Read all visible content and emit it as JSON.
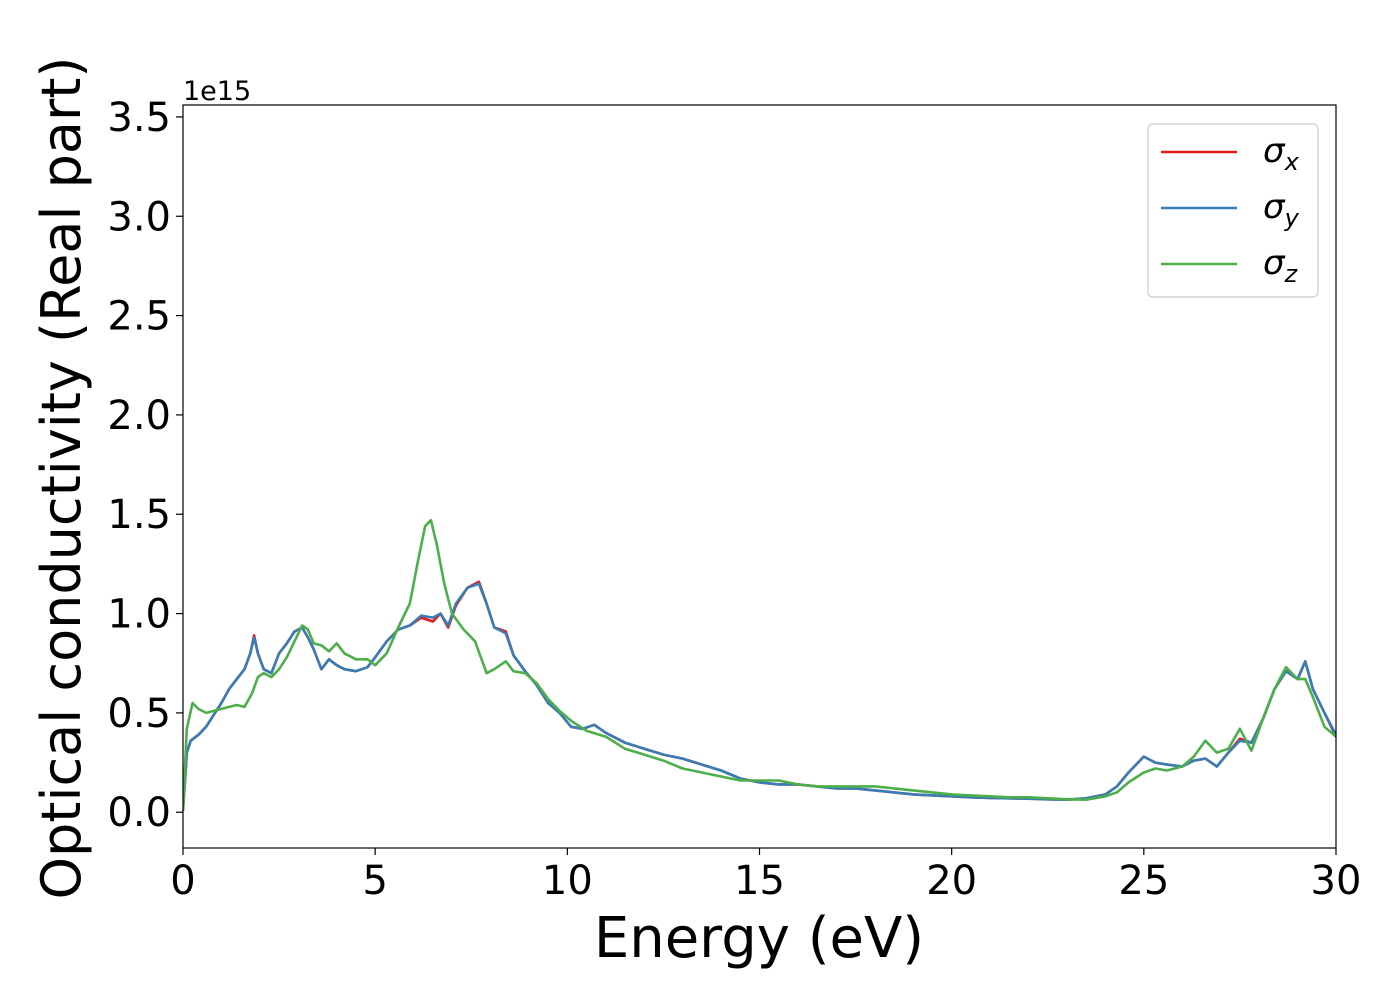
{
  "chart_data": {
    "type": "line",
    "xlabel": "Energy (eV)",
    "ylabel": "Optical conductivity (Real part)",
    "y_offset_label": "1e15",
    "y_scale": 1000000000000000.0,
    "xlim": [
      0,
      30
    ],
    "ylim": [
      -0.18,
      3.56
    ],
    "xticks": [
      0,
      5,
      10,
      15,
      20,
      25,
      30
    ],
    "xtick_labels": [
      "0",
      "5",
      "10",
      "15",
      "20",
      "25",
      "30"
    ],
    "yticks": [
      0.0,
      0.5,
      1.0,
      1.5,
      2.0,
      2.5,
      3.0,
      3.5
    ],
    "ytick_labels": [
      "0.0",
      "0.5",
      "1.0",
      "1.5",
      "2.0",
      "2.5",
      "3.0",
      "3.5"
    ],
    "grid": false,
    "legend_position": "top-right",
    "series": [
      {
        "name": "σx",
        "name_base": "σ",
        "name_sub": "x",
        "color": "#e41a1c",
        "x": [
          0,
          0.1,
          0.2,
          0.4,
          0.6,
          0.8,
          1.0,
          1.2,
          1.4,
          1.6,
          1.75,
          1.85,
          1.95,
          2.1,
          2.3,
          2.5,
          2.7,
          2.9,
          3.1,
          3.25,
          3.4,
          3.6,
          3.8,
          4.0,
          4.2,
          4.5,
          4.8,
          5.0,
          5.3,
          5.6,
          5.9,
          6.2,
          6.5,
          6.7,
          6.9,
          7.1,
          7.4,
          7.7,
          7.9,
          8.1,
          8.4,
          8.6,
          8.9,
          9.2,
          9.5,
          9.8,
          10.1,
          10.4,
          10.7,
          11.0,
          11.5,
          12.0,
          12.5,
          13.0,
          13.5,
          14.0,
          14.5,
          15.0,
          15.5,
          16.0,
          16.5,
          17.0,
          17.5,
          18.0,
          18.5,
          19.0,
          19.5,
          20.0,
          20.5,
          21.0,
          21.5,
          22.0,
          22.5,
          23.0,
          23.5,
          24.0,
          24.3,
          24.6,
          25.0,
          25.3,
          25.6,
          26.0,
          26.3,
          26.6,
          26.9,
          27.2,
          27.5,
          27.8,
          28.1,
          28.4,
          28.7,
          29.0,
          29.2,
          29.4,
          29.7,
          30.0
        ],
        "values": [
          0.01,
          0.3,
          0.36,
          0.39,
          0.43,
          0.49,
          0.55,
          0.62,
          0.67,
          0.72,
          0.8,
          0.89,
          0.8,
          0.72,
          0.7,
          0.8,
          0.85,
          0.91,
          0.93,
          0.88,
          0.82,
          0.72,
          0.77,
          0.74,
          0.72,
          0.71,
          0.73,
          0.78,
          0.86,
          0.92,
          0.94,
          0.98,
          0.96,
          1.0,
          0.93,
          1.04,
          1.13,
          1.16,
          1.05,
          0.93,
          0.91,
          0.79,
          0.71,
          0.64,
          0.55,
          0.5,
          0.43,
          0.42,
          0.44,
          0.4,
          0.35,
          0.32,
          0.29,
          0.27,
          0.24,
          0.21,
          0.17,
          0.15,
          0.14,
          0.14,
          0.13,
          0.12,
          0.12,
          0.11,
          0.1,
          0.09,
          0.085,
          0.08,
          0.075,
          0.072,
          0.07,
          0.068,
          0.065,
          0.063,
          0.07,
          0.09,
          0.13,
          0.2,
          0.28,
          0.25,
          0.24,
          0.23,
          0.26,
          0.27,
          0.23,
          0.3,
          0.37,
          0.35,
          0.47,
          0.62,
          0.71,
          0.67,
          0.76,
          0.62,
          0.5,
          0.38
        ]
      },
      {
        "name": "σy",
        "name_base": "σ",
        "name_sub": "y",
        "color": "#377eb8",
        "x": [
          0,
          0.1,
          0.2,
          0.4,
          0.6,
          0.8,
          1.0,
          1.2,
          1.4,
          1.6,
          1.75,
          1.85,
          1.95,
          2.1,
          2.3,
          2.5,
          2.7,
          2.9,
          3.1,
          3.25,
          3.4,
          3.6,
          3.8,
          4.0,
          4.2,
          4.5,
          4.8,
          5.0,
          5.3,
          5.6,
          5.9,
          6.2,
          6.5,
          6.7,
          6.9,
          7.1,
          7.4,
          7.7,
          7.9,
          8.1,
          8.4,
          8.6,
          8.9,
          9.2,
          9.5,
          9.8,
          10.1,
          10.4,
          10.7,
          11.0,
          11.5,
          12.0,
          12.5,
          13.0,
          13.5,
          14.0,
          14.5,
          15.0,
          15.5,
          16.0,
          16.5,
          17.0,
          17.5,
          18.0,
          18.5,
          19.0,
          19.5,
          20.0,
          20.5,
          21.0,
          21.5,
          22.0,
          22.5,
          23.0,
          23.5,
          24.0,
          24.3,
          24.6,
          25.0,
          25.3,
          25.6,
          26.0,
          26.3,
          26.6,
          26.9,
          27.2,
          27.5,
          27.8,
          28.1,
          28.4,
          28.7,
          29.0,
          29.2,
          29.4,
          29.7,
          30.0
        ],
        "values": [
          0.01,
          0.3,
          0.36,
          0.39,
          0.43,
          0.49,
          0.55,
          0.62,
          0.67,
          0.72,
          0.8,
          0.88,
          0.8,
          0.72,
          0.7,
          0.8,
          0.85,
          0.91,
          0.93,
          0.88,
          0.82,
          0.72,
          0.77,
          0.74,
          0.72,
          0.71,
          0.73,
          0.78,
          0.86,
          0.92,
          0.94,
          0.99,
          0.98,
          1.0,
          0.94,
          1.05,
          1.13,
          1.15,
          1.05,
          0.93,
          0.9,
          0.79,
          0.71,
          0.64,
          0.55,
          0.5,
          0.43,
          0.42,
          0.44,
          0.4,
          0.35,
          0.32,
          0.29,
          0.27,
          0.24,
          0.21,
          0.17,
          0.15,
          0.14,
          0.14,
          0.13,
          0.12,
          0.12,
          0.11,
          0.1,
          0.09,
          0.085,
          0.08,
          0.075,
          0.072,
          0.07,
          0.068,
          0.065,
          0.063,
          0.07,
          0.09,
          0.13,
          0.2,
          0.28,
          0.25,
          0.24,
          0.23,
          0.26,
          0.27,
          0.23,
          0.3,
          0.36,
          0.35,
          0.47,
          0.62,
          0.71,
          0.67,
          0.76,
          0.62,
          0.5,
          0.39
        ]
      },
      {
        "name": "σz",
        "name_base": "σ",
        "name_sub": "z",
        "color": "#4daf4a",
        "x": [
          0,
          0.1,
          0.25,
          0.4,
          0.6,
          0.8,
          1.0,
          1.2,
          1.4,
          1.6,
          1.8,
          1.95,
          2.1,
          2.3,
          2.5,
          2.7,
          2.9,
          3.1,
          3.25,
          3.4,
          3.6,
          3.8,
          4.0,
          4.2,
          4.5,
          4.8,
          5.0,
          5.3,
          5.6,
          5.9,
          6.1,
          6.3,
          6.45,
          6.6,
          6.8,
          7.0,
          7.3,
          7.6,
          7.9,
          8.1,
          8.4,
          8.6,
          8.9,
          9.2,
          9.5,
          9.8,
          10.1,
          10.5,
          11.0,
          11.5,
          12.0,
          12.5,
          13.0,
          13.5,
          14.0,
          14.5,
          15.0,
          15.5,
          16.0,
          16.5,
          17.0,
          17.5,
          18.0,
          18.5,
          19.0,
          19.5,
          20.0,
          20.5,
          21.0,
          21.5,
          22.0,
          22.5,
          23.0,
          23.5,
          24.0,
          24.3,
          24.6,
          25.0,
          25.3,
          25.6,
          26.0,
          26.3,
          26.6,
          26.9,
          27.2,
          27.5,
          27.8,
          28.1,
          28.4,
          28.7,
          29.0,
          29.2,
          29.4,
          29.7,
          30.0
        ],
        "values": [
          0.01,
          0.42,
          0.55,
          0.52,
          0.5,
          0.51,
          0.52,
          0.53,
          0.54,
          0.53,
          0.6,
          0.68,
          0.7,
          0.68,
          0.72,
          0.78,
          0.86,
          0.94,
          0.92,
          0.85,
          0.84,
          0.81,
          0.85,
          0.8,
          0.77,
          0.77,
          0.74,
          0.8,
          0.93,
          1.05,
          1.25,
          1.44,
          1.47,
          1.35,
          1.15,
          1.0,
          0.92,
          0.86,
          0.7,
          0.72,
          0.76,
          0.71,
          0.7,
          0.65,
          0.57,
          0.51,
          0.46,
          0.41,
          0.38,
          0.32,
          0.29,
          0.26,
          0.22,
          0.2,
          0.18,
          0.16,
          0.16,
          0.16,
          0.14,
          0.13,
          0.13,
          0.13,
          0.13,
          0.12,
          0.11,
          0.1,
          0.09,
          0.085,
          0.08,
          0.075,
          0.075,
          0.07,
          0.065,
          0.063,
          0.08,
          0.1,
          0.15,
          0.2,
          0.22,
          0.21,
          0.23,
          0.28,
          0.36,
          0.3,
          0.32,
          0.42,
          0.31,
          0.47,
          0.62,
          0.73,
          0.67,
          0.67,
          0.58,
          0.43,
          0.38
        ]
      }
    ]
  }
}
